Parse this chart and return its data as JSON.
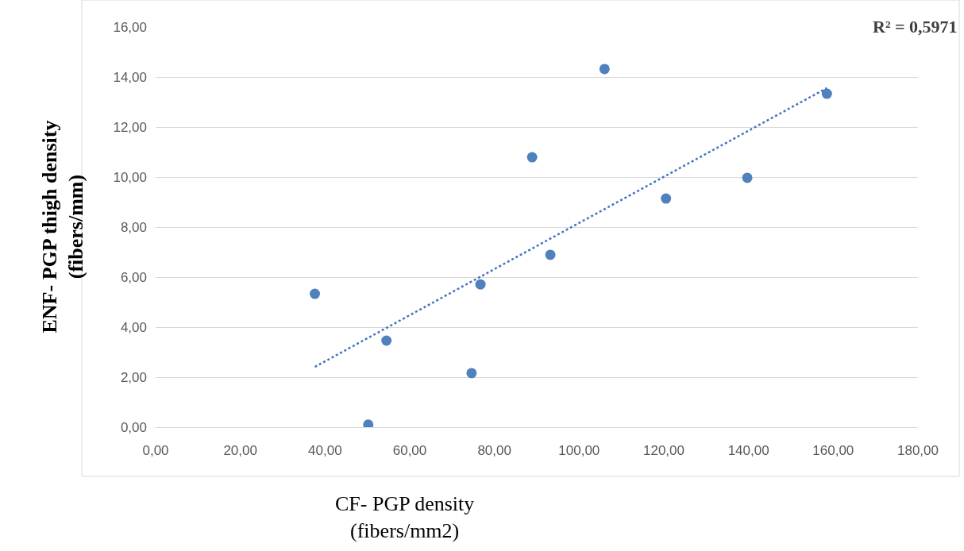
{
  "chart_data": {
    "type": "scatter",
    "xlabel": "CF- PGP density\n(fibers/mm2)",
    "ylabel": "ENF- PGP thigh density\n(fibers/mm)",
    "annotations": [
      "R² = 0,5971"
    ],
    "x": [
      37.6,
      50.2,
      54.5,
      74.6,
      76.7,
      88.9,
      93.2,
      106.0,
      120.5,
      139.7,
      158.5
    ],
    "series": [
      {
        "color": "#4f81bd",
        "marker": "circle",
        "values": [
          5.33,
          0.1,
          3.46,
          2.16,
          5.71,
          10.79,
          6.89,
          14.32,
          9.14,
          9.97,
          13.33
        ]
      },
      {
        "type": "line",
        "color": "#4472c4",
        "line_style": "dotted",
        "marker": "none",
        "x": [
          37.6,
          158.5
        ],
        "values": [
          2.41,
          13.56
        ]
      }
    ],
    "xlim": [
      0,
      180
    ],
    "xticks": [
      {
        "value": 0,
        "label": "0,00"
      },
      {
        "value": 20,
        "label": "20,00"
      },
      {
        "value": 40,
        "label": "40,00"
      },
      {
        "value": 60,
        "label": "60,00"
      },
      {
        "value": 80,
        "label": "80,00"
      },
      {
        "value": 100,
        "label": "100,00"
      },
      {
        "value": 120,
        "label": "120,00"
      },
      {
        "value": 140,
        "label": "140,00"
      },
      {
        "value": 160,
        "label": "160,00"
      },
      {
        "value": 180,
        "label": "180,00"
      }
    ],
    "ylim": [
      0,
      16
    ],
    "yticks": [
      {
        "value": 0,
        "label": "0,00"
      },
      {
        "value": 2,
        "label": "2,00"
      },
      {
        "value": 4,
        "label": "4,00"
      },
      {
        "value": 6,
        "label": "6,00"
      },
      {
        "value": 8,
        "label": "8,00"
      },
      {
        "value": 10,
        "label": "10,00"
      },
      {
        "value": 12,
        "label": "12,00"
      },
      {
        "value": 14,
        "label": "14,00"
      },
      {
        "value": 16,
        "label": "16,00"
      }
    ],
    "grid": "y"
  }
}
